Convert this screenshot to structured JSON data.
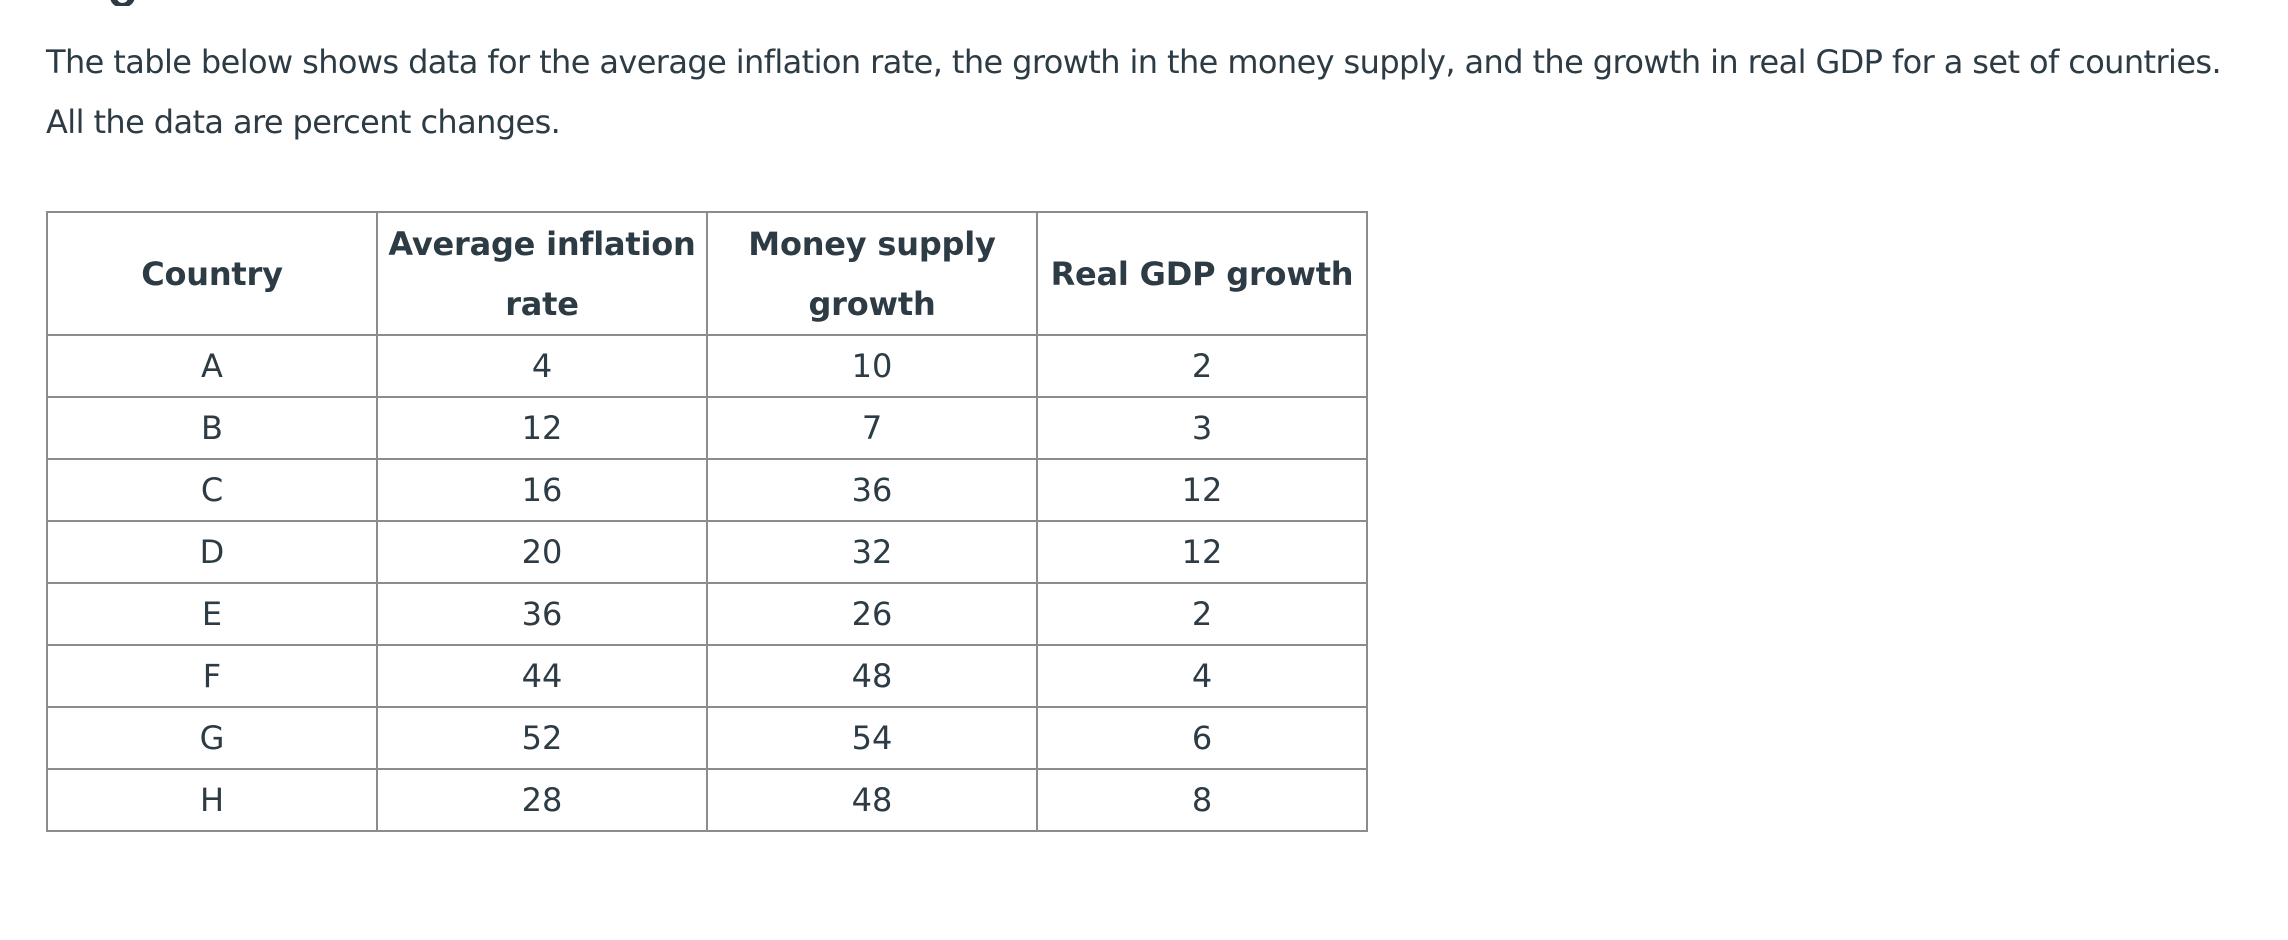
{
  "intro": "The table below shows data for the average inflation rate, the growth in the money supply, and the growth in real GDP for a set of countries. All the data are percent changes.",
  "table": {
    "headers": [
      "Country",
      "Average inflation rate",
      "Money supply growth",
      "Real GDP growth"
    ],
    "rows": [
      [
        "A",
        "4",
        "10",
        "2"
      ],
      [
        "B",
        "12",
        "7",
        "3"
      ],
      [
        "C",
        "16",
        "36",
        "12"
      ],
      [
        "D",
        "20",
        "32",
        "12"
      ],
      [
        "E",
        "36",
        "26",
        "2"
      ],
      [
        "F",
        "44",
        "48",
        "4"
      ],
      [
        "G",
        "52",
        "54",
        "6"
      ],
      [
        "H",
        "28",
        "48",
        "8"
      ]
    ]
  }
}
